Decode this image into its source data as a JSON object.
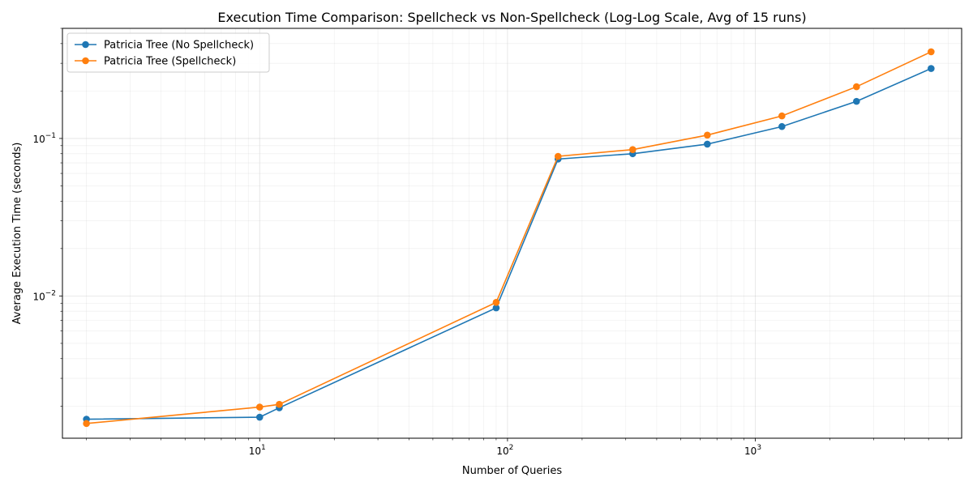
{
  "chart_data": {
    "type": "line",
    "title": "Execution Time Comparison: Spellcheck vs Non-Spellcheck (Log-Log Scale, Avg of 15 runs)",
    "xlabel": "Number of Queries",
    "ylabel": "Average Execution Time (seconds)",
    "xscale": "log",
    "yscale": "log",
    "xlim": [
      1.6,
      6800
    ],
    "ylim": [
      0.00125,
      0.5
    ],
    "grid": true,
    "legend_position": "top-left",
    "x_ticks": [
      {
        "value": 10,
        "base": "10",
        "exp": "1"
      },
      {
        "value": 100,
        "base": "10",
        "exp": "2"
      },
      {
        "value": 1000,
        "base": "10",
        "exp": "3"
      }
    ],
    "y_ticks": [
      {
        "value": 0.01,
        "base": "10",
        "exp": "−2"
      },
      {
        "value": 0.1,
        "base": "10",
        "exp": "−1"
      }
    ],
    "x": [
      2,
      10,
      12,
      90,
      160,
      320,
      640,
      1280,
      2560,
      5120
    ],
    "series": [
      {
        "name": "Patricia Tree (No Spellcheck)",
        "color": "#1f77b4",
        "values": [
          0.00165,
          0.0017,
          0.00195,
          0.0084,
          0.074,
          0.08,
          0.092,
          0.119,
          0.172,
          0.278
        ]
      },
      {
        "name": "Patricia Tree (Spellcheck)",
        "color": "#ff7f0e",
        "values": [
          0.00155,
          0.00197,
          0.00205,
          0.0091,
          0.077,
          0.085,
          0.105,
          0.139,
          0.213,
          0.355
        ]
      }
    ]
  }
}
